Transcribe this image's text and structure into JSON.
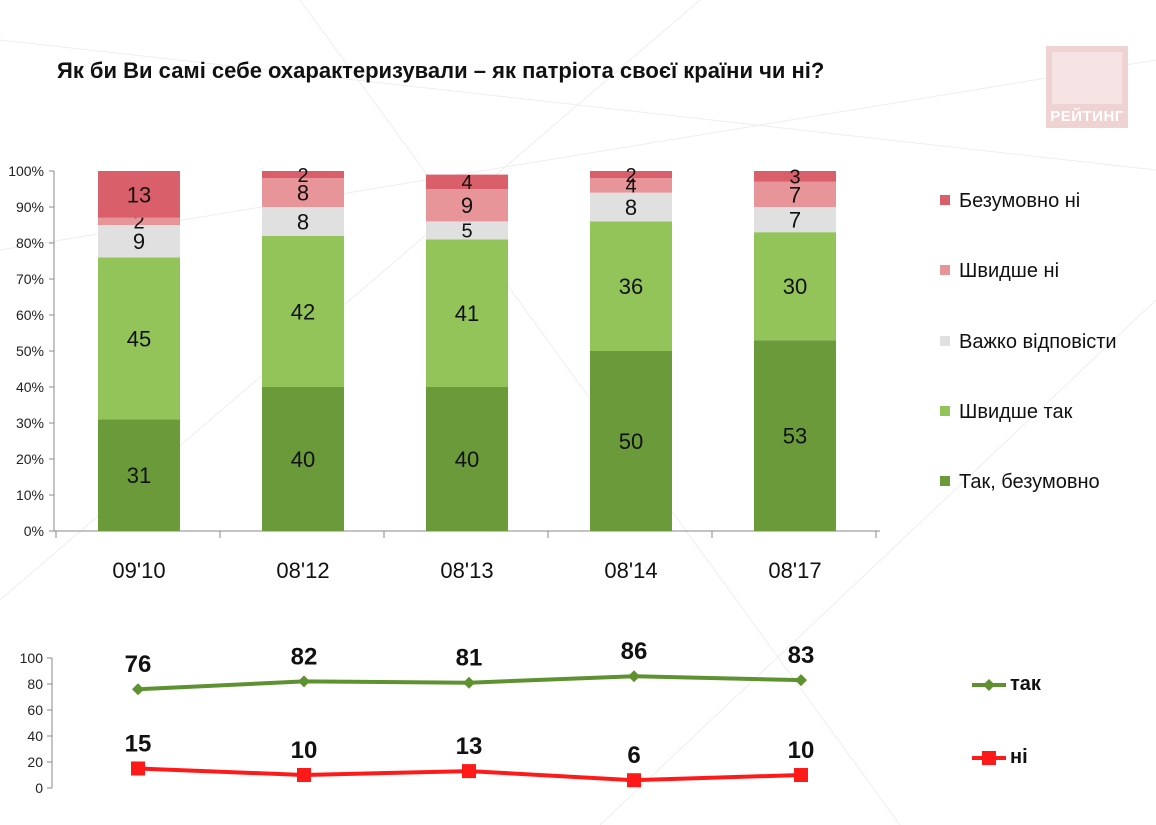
{
  "title": "Як  би Ви самі себе охарактеризували – як патріота своєї країни чи ні?",
  "logo": {
    "text": "РЕЙТИНГ"
  },
  "colors": {
    "tak_bezumovno": "#6a9a3a",
    "shvydshe_tak": "#92c45a",
    "vazhko": "#e0e0e0",
    "shvydshe_ni": "#e8959a",
    "bezumovno_ni": "#d9606a",
    "line_tak": "#5e9130",
    "line_ni": "#ff1a1a"
  },
  "chart_data": [
    {
      "type": "bar",
      "stacked": true,
      "categories": [
        "09'10",
        "08'12",
        "08'13",
        "08'14",
        "08'17"
      ],
      "series": [
        {
          "name": "Так, безумовно",
          "values": [
            31,
            40,
            40,
            50,
            53
          ]
        },
        {
          "name": "Швидше так",
          "values": [
            45,
            42,
            41,
            36,
            30
          ]
        },
        {
          "name": "Важко відповісти",
          "values": [
            9,
            8,
            5,
            8,
            7
          ]
        },
        {
          "name": "Швидше ні",
          "values": [
            2,
            8,
            9,
            4,
            7
          ]
        },
        {
          "name": "Безумовно ні",
          "values": [
            13,
            2,
            4,
            2,
            3
          ]
        }
      ],
      "ylim": [
        0,
        100
      ],
      "yticks": [
        "0%",
        "10%",
        "20%",
        "30%",
        "40%",
        "50%",
        "60%",
        "70%",
        "80%",
        "90%",
        "100%"
      ],
      "legend": "right"
    },
    {
      "type": "line",
      "categories": [
        "09'10",
        "08'12",
        "08'13",
        "08'14",
        "08'17"
      ],
      "series": [
        {
          "name": "так",
          "values": [
            76,
            82,
            81,
            86,
            83
          ]
        },
        {
          "name": "ні",
          "values": [
            15,
            10,
            13,
            6,
            10
          ]
        }
      ],
      "ylim": [
        0,
        100
      ],
      "yticks": [
        "0",
        "20",
        "40",
        "60",
        "80",
        "100"
      ],
      "legend": "right"
    }
  ]
}
